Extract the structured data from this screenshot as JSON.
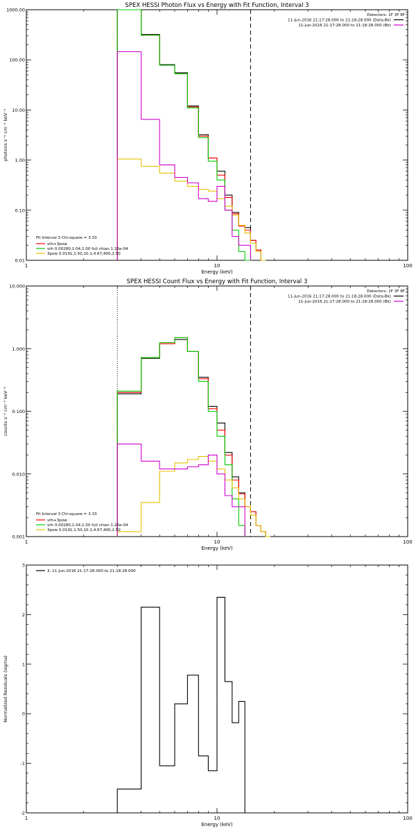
{
  "chart_data": [
    {
      "type": "line",
      "title": "SPEX HESSI Photon Flux vs Energy with Fit Function, Interval 3",
      "xlabel": "Energy (keV)",
      "ylabel": "photons s⁻¹ cm⁻² keV⁻¹",
      "x_scale": "log",
      "y_scale": "log",
      "xlim": [
        1,
        100
      ],
      "ylim": [
        0.01,
        1000
      ],
      "x_ticks": [
        {
          "v": 1,
          "label": "1"
        },
        {
          "v": 10,
          "label": "10"
        },
        {
          "v": 100,
          "label": "100"
        }
      ],
      "y_ticks": [
        {
          "v": 0.01,
          "label": "0.01"
        },
        {
          "v": 0.1,
          "label": "0.10"
        },
        {
          "v": 1,
          "label": "1.00"
        },
        {
          "v": 10,
          "label": "10.00"
        },
        {
          "v": 100,
          "label": "100.00"
        },
        {
          "v": 1000,
          "label": "1000.00"
        }
      ],
      "header": [
        "Detectors: 1F 3F 8F",
        "11-Jun-2016 21:17:28.000 to 21:18:28.000 (Data-Bk)",
        "11-Jun-2016 21:17:28.000 to 21:18:28.000 (Bk)"
      ],
      "header_colors": [
        "",
        "#000000",
        "#cc00cc"
      ],
      "legend_title": "Fit Interval 3   Chi-square = 3.33",
      "legend": [
        {
          "label": "vth+3pow",
          "color": "#ff0000"
        },
        {
          "label": "vth 0.00280,1.04,1.00  full chian 1.26e-04",
          "color": "#00cc00"
        },
        {
          "label": "3pow 0.0191,1.50,10.1,4.67,400,2.50",
          "color": "#e6c000"
        }
      ],
      "dotted_x": 3,
      "dashed_x": 15,
      "bin_edges": [
        3,
        4,
        5,
        6,
        7,
        8,
        9,
        10,
        11,
        12,
        13,
        14,
        15,
        16,
        17,
        18,
        19
      ],
      "series": [
        {
          "name": "Data-Bk",
          "color": "#000000",
          "values": [
            1000,
            320,
            80,
            55,
            12,
            3.2,
            1.1,
            0.6,
            0.2,
            0.09,
            0.05,
            0.045,
            0.025,
            0.016,
            0.01,
            null
          ]
        },
        {
          "name": "vth+3pow",
          "color": "#ff0000",
          "values": [
            1000,
            310,
            78,
            53,
            11.5,
            3.0,
            1.1,
            0.5,
            0.18,
            0.085,
            0.048,
            0.04,
            0.025,
            0.016,
            0.01,
            null
          ]
        },
        {
          "name": "vth",
          "color": "#00cc00",
          "values": [
            1000,
            310,
            78,
            53,
            11,
            2.8,
            0.95,
            0.4,
            0.1,
            0.04,
            0.015,
            0.01,
            null,
            null,
            null,
            null
          ]
        },
        {
          "name": "3pow",
          "color": "#e6c000",
          "values": [
            1.05,
            0.75,
            0.55,
            0.38,
            0.3,
            0.26,
            0.24,
            0.17,
            0.12,
            0.08,
            0.05,
            0.035,
            0.022,
            0.015,
            0.01,
            null
          ]
        },
        {
          "name": "Bk",
          "color": "#cc00cc",
          "values": [
            145,
            6.5,
            0.8,
            0.45,
            0.35,
            0.17,
            0.15,
            0.3,
            0.1,
            0.03,
            0.02,
            0.02,
            null,
            null,
            null,
            null
          ]
        }
      ]
    },
    {
      "type": "line",
      "title": "SPEX HESSI Count Flux vs Energy with Fit Function, Interval 3",
      "xlabel": "Energy (keV)",
      "ylabel": "counts s⁻¹ cm⁻² keV⁻¹",
      "x_scale": "log",
      "y_scale": "log",
      "xlim": [
        1,
        100
      ],
      "ylim": [
        0.001,
        10
      ],
      "x_ticks": [
        {
          "v": 1,
          "label": "1"
        },
        {
          "v": 10,
          "label": "10"
        },
        {
          "v": 100,
          "label": "100"
        }
      ],
      "y_ticks": [
        {
          "v": 0.001,
          "label": "0.001"
        },
        {
          "v": 0.01,
          "label": "0.010"
        },
        {
          "v": 0.1,
          "label": "0.100"
        },
        {
          "v": 1,
          "label": "1.000"
        },
        {
          "v": 10,
          "label": "10.000"
        }
      ],
      "header": [
        "Detectors: 1F 3F 8F",
        "11-Jun-2016 21:17:28.000 to 21:18:28.000 (Data-Bk)",
        "11-Jun-2016 21:17:28.000 to 21:18:28.000 (Bk)"
      ],
      "header_colors": [
        "",
        "#000000",
        "#cc00cc"
      ],
      "legend_title": "Fit Interval 3   Chi-square = 3.33",
      "legend": [
        {
          "label": "vth+3pow",
          "color": "#ff0000"
        },
        {
          "label": "vth 0.00280,1.04,1.00  full chian 1.26e-04",
          "color": "#00cc00"
        },
        {
          "label": "3pow 0.0191,1.50,10.1,4.67,400,2.50",
          "color": "#e6c000"
        }
      ],
      "dotted_x": 3,
      "dashed_x": 15,
      "bin_edges": [
        3,
        4,
        5,
        6,
        7,
        8,
        9,
        10,
        11,
        12,
        13,
        14,
        15,
        16,
        17,
        18,
        19,
        20
      ],
      "series": [
        {
          "name": "Data-Bk",
          "color": "#000000",
          "values": [
            0.19,
            0.7,
            1.2,
            1.4,
            0.9,
            0.35,
            0.12,
            0.065,
            0.022,
            0.009,
            0.005,
            0.003,
            0.0025,
            0.0015,
            0.0012,
            null,
            null
          ]
        },
        {
          "name": "vth+3pow",
          "color": "#ff0000",
          "values": [
            0.2,
            0.72,
            1.2,
            1.5,
            0.9,
            0.33,
            0.11,
            0.05,
            0.02,
            0.008,
            0.0048,
            0.003,
            0.0025,
            0.0015,
            0.0012,
            null,
            null
          ]
        },
        {
          "name": "vth",
          "color": "#00cc00",
          "values": [
            0.21,
            0.72,
            1.25,
            1.5,
            0.9,
            0.3,
            0.1,
            0.04,
            0.014,
            0.004,
            0.0015,
            null,
            null,
            null,
            null,
            null,
            null
          ]
        },
        {
          "name": "3pow",
          "color": "#e6c000",
          "values": [
            0.0012,
            0.0035,
            0.011,
            0.015,
            0.017,
            0.019,
            0.016,
            0.012,
            0.008,
            0.006,
            0.004,
            0.003,
            0.0022,
            0.0015,
            0.0012,
            0.001,
            null
          ]
        },
        {
          "name": "Bk",
          "color": "#cc00cc",
          "values": [
            0.03,
            0.016,
            0.012,
            0.012,
            0.013,
            0.014,
            0.02,
            0.01,
            0.0045,
            0.003,
            0.003,
            null,
            null,
            null,
            null,
            null,
            null
          ]
        }
      ]
    },
    {
      "type": "line",
      "title": "",
      "xlabel": "Energy (keV)",
      "ylabel": "Normalized Residuals (sigma)",
      "x_scale": "log",
      "y_scale": "linear",
      "xlim": [
        1,
        100
      ],
      "ylim": [
        -2,
        3
      ],
      "x_ticks": [
        {
          "v": 1,
          "label": "1"
        },
        {
          "v": 10,
          "label": "10"
        },
        {
          "v": 100,
          "label": "100"
        }
      ],
      "y_ticks": [
        {
          "v": -2,
          "label": "-2"
        },
        {
          "v": -1,
          "label": "-1"
        },
        {
          "v": 0,
          "label": "0"
        },
        {
          "v": 1,
          "label": "1"
        },
        {
          "v": 2,
          "label": "2"
        },
        {
          "v": 3,
          "label": "3"
        }
      ],
      "legend_title": "",
      "legend": [
        {
          "label": "3, 11-Jun-2016 21:17:28.000 to 21:18:28.000",
          "color": "#000000"
        }
      ],
      "bin_edges": [
        3,
        4,
        5,
        6,
        7,
        8,
        9,
        10,
        11,
        12,
        13,
        14,
        15
      ],
      "series": [
        {
          "name": "residuals",
          "color": "#000000",
          "values": [
            -1.52,
            2.15,
            -1.05,
            0.2,
            0.78,
            -0.85,
            -1.15,
            2.35,
            0.65,
            -0.18,
            0.25,
            -2.0
          ],
          "baseline": -2
        }
      ]
    }
  ]
}
